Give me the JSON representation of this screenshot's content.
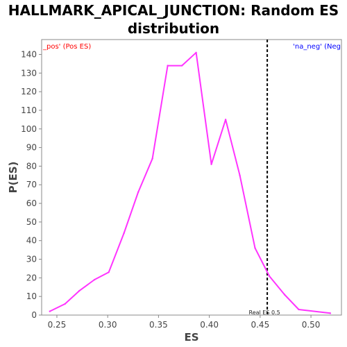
{
  "chart_data": {
    "type": "line",
    "title_line1": "HALLMARK_APICAL_JUNCTION: Random ES",
    "title_line2": "distribution",
    "xlabel": "ES",
    "ylabel": "P(ES)",
    "xlim": [
      0.235,
      0.53
    ],
    "ylim": [
      0,
      148
    ],
    "x_ticks": [
      "0.25",
      "0.30",
      "0.35",
      "0.40",
      "0.45",
      "0.50"
    ],
    "x_tick_values": [
      0.25,
      0.3,
      0.35,
      0.4,
      0.45,
      0.5
    ],
    "y_ticks": [
      "0",
      "10",
      "20",
      "30",
      "40",
      "50",
      "60",
      "70",
      "80",
      "90",
      "100",
      "110",
      "120",
      "130",
      "140"
    ],
    "y_tick_values": [
      0,
      10,
      20,
      30,
      40,
      50,
      60,
      70,
      80,
      90,
      100,
      110,
      120,
      130,
      140
    ],
    "grid": false,
    "series": [
      {
        "color": "#ff33ff",
        "x": [
          0.243,
          0.258,
          0.272,
          0.287,
          0.301,
          0.316,
          0.33,
          0.344,
          0.359,
          0.373,
          0.387,
          0.402,
          0.416,
          0.43,
          0.445,
          0.459,
          0.474,
          0.488,
          0.519
        ],
        "y": [
          2,
          6,
          13,
          19,
          23,
          44,
          66,
          84,
          134,
          134,
          141,
          81,
          105,
          75,
          36,
          21,
          11,
          3,
          1
        ]
      }
    ],
    "vline": {
      "x": 0.457,
      "label": "Real ES 0.5",
      "style": "dashed",
      "color": "#000000"
    },
    "legend_pos": "_pos' (Pos ES)",
    "legend_neg": "'na_neg' (Neg",
    "legend_pos_color": "#ff0000",
    "legend_neg_color": "#0000ff",
    "legend_placement": "top"
  }
}
